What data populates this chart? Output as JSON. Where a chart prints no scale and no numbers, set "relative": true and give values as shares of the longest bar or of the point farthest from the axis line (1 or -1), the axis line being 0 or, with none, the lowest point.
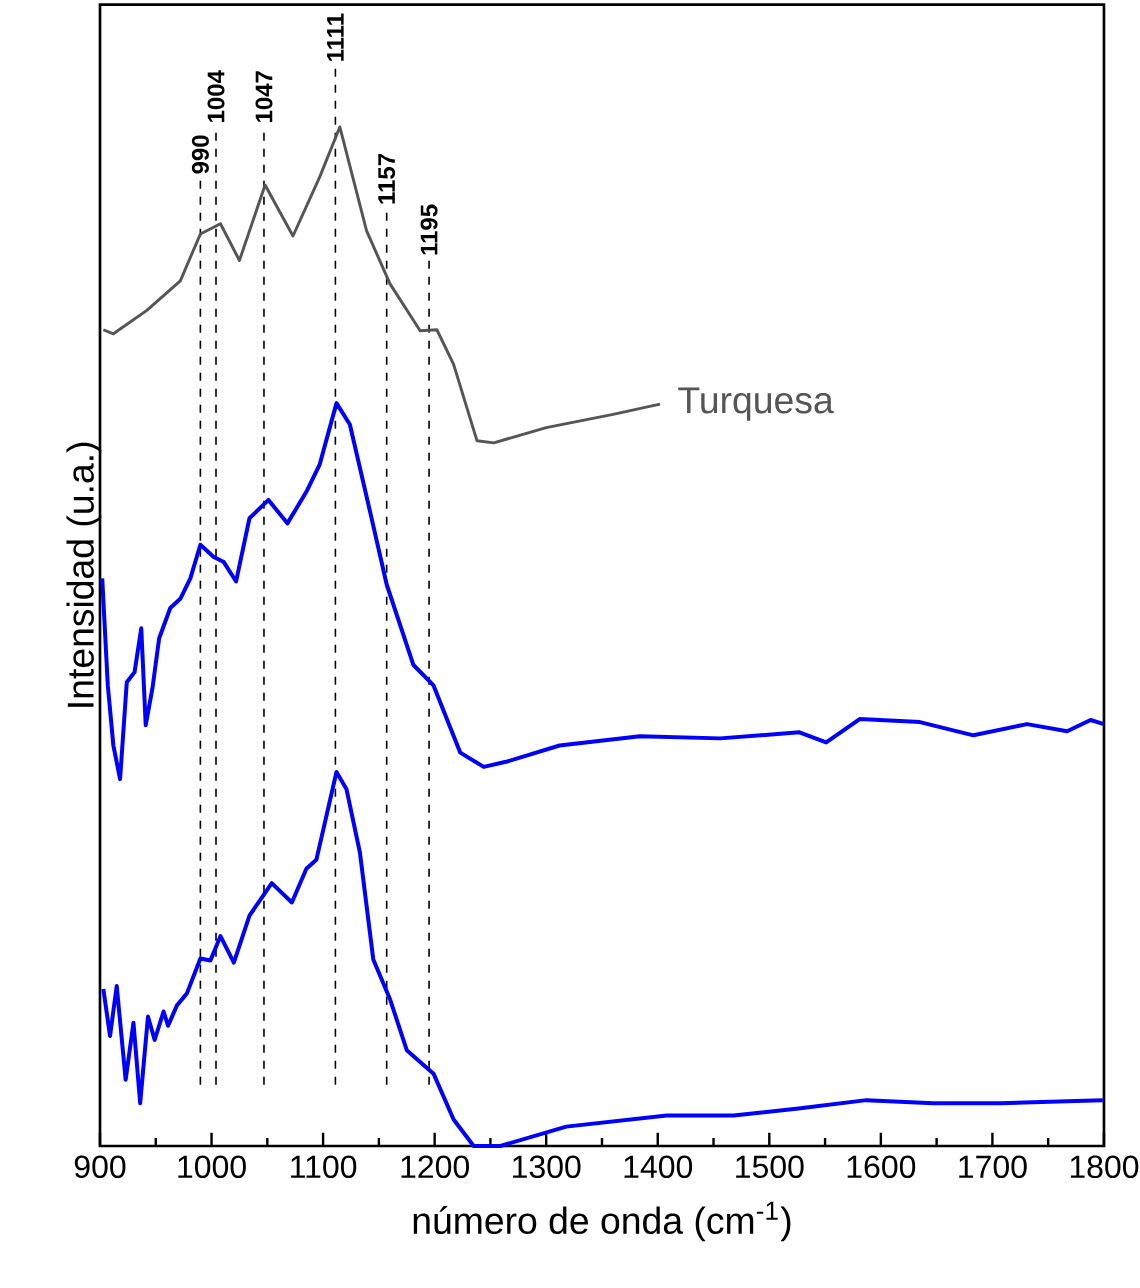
{
  "chart_data": {
    "type": "line",
    "relative": true,
    "xlabel": "número de onda (cm$^{-1}$)",
    "ylabel": "Intensidad (u.a.)",
    "xlim": [
      900,
      1800
    ],
    "xticks": [
      900,
      1000,
      1100,
      1200,
      1300,
      1400,
      1500,
      1600,
      1700,
      1800
    ],
    "series": [
      {
        "name": "Turquesa",
        "color": "#555555",
        "x": [
          903,
          912,
          942,
          972,
          990,
          1008,
          1025,
          1048,
          1073,
          1097,
          1115,
          1139,
          1160,
          1187,
          1202,
          1217,
          1238,
          1253,
          1300,
          1360,
          1402
        ],
        "values": [
          0.801,
          0.797,
          0.82,
          0.849,
          0.895,
          0.905,
          0.869,
          0.943,
          0.893,
          0.951,
          1.0,
          0.898,
          0.846,
          0.8,
          0.801,
          0.767,
          0.692,
          0.69,
          0.705,
          0.718,
          0.728
        ]
      },
      {
        "color": "#0000ff",
        "x": [
          902,
          907,
          912,
          918,
          924,
          931,
          937,
          941,
          947,
          953,
          963,
          972,
          981,
          990,
          1002,
          1011,
          1022,
          1034,
          1051,
          1068,
          1085,
          1097,
          1112,
          1124,
          1142,
          1157,
          1181,
          1199,
          1223,
          1244,
          1264,
          1312,
          1384,
          1456,
          1527,
          1551,
          1581,
          1635,
          1683,
          1731,
          1767,
          1788,
          1800
        ],
        "values": [
          0.557,
          0.452,
          0.393,
          0.36,
          0.455,
          0.465,
          0.508,
          0.413,
          0.449,
          0.498,
          0.528,
          0.537,
          0.557,
          0.59,
          0.578,
          0.573,
          0.554,
          0.616,
          0.634,
          0.611,
          0.642,
          0.669,
          0.729,
          0.708,
          0.623,
          0.551,
          0.472,
          0.452,
          0.386,
          0.372,
          0.377,
          0.393,
          0.402,
          0.4,
          0.406,
          0.396,
          0.419,
          0.416,
          0.403,
          0.414,
          0.407,
          0.418,
          0.414
        ]
      },
      {
        "color": "#0000ff",
        "x": [
          903,
          909,
          915,
          923,
          930,
          936,
          943,
          949,
          957,
          961,
          969,
          978,
          990,
          999,
          1008,
          1020,
          1034,
          1054,
          1072,
          1085,
          1094,
          1112,
          1121,
          1133,
          1145,
          1160,
          1175,
          1199,
          1217,
          1235,
          1259,
          1318,
          1408,
          1468,
          1528,
          1587,
          1647,
          1707,
          1767,
          1799
        ],
        "values": [
          0.154,
          0.108,
          0.157,
          0.065,
          0.121,
          0.042,
          0.127,
          0.104,
          0.132,
          0.118,
          0.138,
          0.15,
          0.184,
          0.182,
          0.206,
          0.18,
          0.226,
          0.258,
          0.239,
          0.272,
          0.281,
          0.367,
          0.35,
          0.288,
          0.183,
          0.144,
          0.094,
          0.071,
          0.026,
          0.0,
          0.0,
          0.019,
          0.03,
          0.03,
          0.037,
          0.045,
          0.042,
          0.042,
          0.044,
          0.045
        ]
      }
    ],
    "ref_lines": [
      {
        "axis": "x",
        "value": 990,
        "label": "990",
        "color": "#000000",
        "line_style": "dashed"
      },
      {
        "axis": "x",
        "value": 1004,
        "label": "1004",
        "color": "#000000",
        "line_style": "dashed"
      },
      {
        "axis": "x",
        "value": 1047,
        "label": "1047",
        "color": "#000000",
        "line_style": "dashed"
      },
      {
        "axis": "x",
        "value": 1111,
        "label": "1111",
        "color": "#000000",
        "line_style": "dashed"
      },
      {
        "axis": "x",
        "value": 1157,
        "label": "1157",
        "color": "#000000",
        "line_style": "dashed"
      },
      {
        "axis": "x",
        "value": 1195,
        "label": "1195",
        "color": "#000000",
        "line_style": "dashed"
      }
    ],
    "grid": false,
    "legend": false,
    "marker": "none"
  }
}
